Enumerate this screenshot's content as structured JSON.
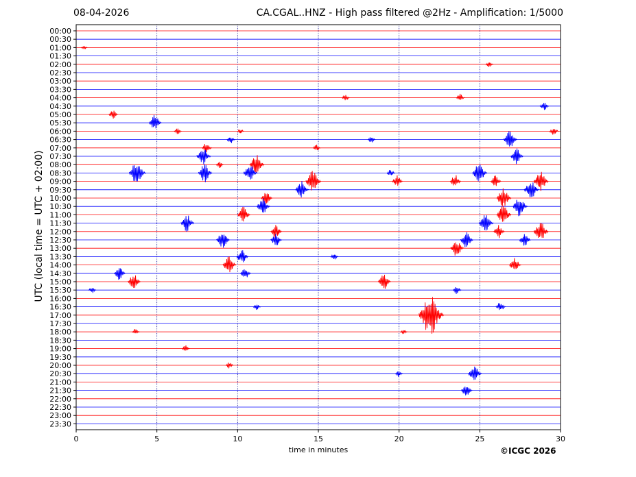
{
  "header": {
    "date": "08-04-2026",
    "title": "CA.CGAL..HNZ - High pass filtered @2Hz - Amplification: 1/5000"
  },
  "footer": {
    "copyright": "©ICGC 2026"
  },
  "colors": {
    "red_trace": "#ff0000",
    "blue_trace": "#0000ff",
    "grid": "#00008b",
    "axis": "#000000"
  },
  "chart_data": {
    "type": "line",
    "title": "CA.CGAL..HNZ - High pass filtered @2Hz - Amplification: 1/5000",
    "xlabel": "time in minutes",
    "ylabel": "UTC (local time = UTC + 02:00)",
    "xlim": [
      0,
      30
    ],
    "x_ticks": [
      "0",
      "5",
      "10",
      "15",
      "20",
      "25",
      "30"
    ],
    "x_tick_values": [
      0,
      5,
      10,
      15,
      20,
      25,
      30
    ],
    "rows": [
      "00:00",
      "00:30",
      "01:00",
      "01:30",
      "02:00",
      "02:30",
      "03:00",
      "03:30",
      "04:00",
      "04:30",
      "05:00",
      "05:30",
      "06:00",
      "06:30",
      "07:00",
      "07:30",
      "08:00",
      "08:30",
      "09:00",
      "09:30",
      "10:00",
      "10:30",
      "11:00",
      "11:30",
      "12:00",
      "12:30",
      "13:00",
      "13:30",
      "14:00",
      "14:30",
      "15:00",
      "15:30",
      "16:00",
      "16:30",
      "17:00",
      "17:30",
      "18:00",
      "18:30",
      "19:00",
      "19:30",
      "20:00",
      "20:30",
      "21:00",
      "21:30",
      "22:00",
      "22:30",
      "23:00",
      "23:30"
    ],
    "row_colors": "alternating red (:00) and blue (:30)",
    "vertical_grid": true,
    "events": [
      {
        "row": "01:00",
        "minute": 0.5,
        "amplitude": 0.3
      },
      {
        "row": "02:00",
        "minute": 25.6,
        "amplitude": 0.5
      },
      {
        "row": "04:00",
        "minute": 16.7,
        "amplitude": 0.5
      },
      {
        "row": "04:00",
        "minute": 23.8,
        "amplitude": 0.6
      },
      {
        "row": "04:30",
        "minute": 29.0,
        "amplitude": 0.7
      },
      {
        "row": "05:00",
        "minute": 2.3,
        "amplitude": 0.7
      },
      {
        "row": "05:30",
        "minute": 4.9,
        "amplitude": 1.2
      },
      {
        "row": "06:00",
        "minute": 6.3,
        "amplitude": 0.5
      },
      {
        "row": "06:00",
        "minute": 10.2,
        "amplitude": 0.4
      },
      {
        "row": "06:00",
        "minute": 29.6,
        "amplitude": 0.7
      },
      {
        "row": "06:30",
        "minute": 9.6,
        "amplitude": 0.6
      },
      {
        "row": "06:30",
        "minute": 18.3,
        "amplitude": 0.5
      },
      {
        "row": "06:30",
        "minute": 26.9,
        "amplitude": 1.3
      },
      {
        "row": "07:00",
        "minute": 8.1,
        "amplitude": 0.8
      },
      {
        "row": "07:00",
        "minute": 14.9,
        "amplitude": 0.5
      },
      {
        "row": "07:30",
        "minute": 7.9,
        "amplitude": 1.4
      },
      {
        "row": "07:30",
        "minute": 27.3,
        "amplitude": 1.2
      },
      {
        "row": "08:00",
        "minute": 11.2,
        "amplitude": 1.5
      },
      {
        "row": "08:00",
        "minute": 8.9,
        "amplitude": 0.5
      },
      {
        "row": "08:30",
        "minute": 3.8,
        "amplitude": 1.8
      },
      {
        "row": "08:30",
        "minute": 8.0,
        "amplitude": 1.4
      },
      {
        "row": "08:30",
        "minute": 10.8,
        "amplitude": 1.4
      },
      {
        "row": "08:30",
        "minute": 25.0,
        "amplitude": 1.5
      },
      {
        "row": "08:30",
        "minute": 19.5,
        "amplitude": 0.6
      },
      {
        "row": "09:00",
        "minute": 14.7,
        "amplitude": 1.6
      },
      {
        "row": "09:00",
        "minute": 19.9,
        "amplitude": 0.9
      },
      {
        "row": "09:00",
        "minute": 23.5,
        "amplitude": 1.0
      },
      {
        "row": "09:00",
        "minute": 26.0,
        "amplitude": 0.9
      },
      {
        "row": "09:00",
        "minute": 28.8,
        "amplitude": 1.5
      },
      {
        "row": "09:30",
        "minute": 14.0,
        "amplitude": 1.3
      },
      {
        "row": "09:30",
        "minute": 28.2,
        "amplitude": 1.5
      },
      {
        "row": "10:00",
        "minute": 11.8,
        "amplitude": 1.0
      },
      {
        "row": "10:00",
        "minute": 26.5,
        "amplitude": 1.5
      },
      {
        "row": "10:30",
        "minute": 11.6,
        "amplitude": 1.3
      },
      {
        "row": "10:30",
        "minute": 27.5,
        "amplitude": 1.5
      },
      {
        "row": "11:00",
        "minute": 10.4,
        "amplitude": 1.2
      },
      {
        "row": "11:00",
        "minute": 26.5,
        "amplitude": 1.5
      },
      {
        "row": "11:30",
        "minute": 6.9,
        "amplitude": 1.3
      },
      {
        "row": "11:30",
        "minute": 25.4,
        "amplitude": 1.5
      },
      {
        "row": "12:00",
        "minute": 12.4,
        "amplitude": 1.0
      },
      {
        "row": "12:00",
        "minute": 26.2,
        "amplitude": 1.0
      },
      {
        "row": "12:00",
        "minute": 28.8,
        "amplitude": 1.5
      },
      {
        "row": "12:30",
        "minute": 9.1,
        "amplitude": 1.3
      },
      {
        "row": "12:30",
        "minute": 12.4,
        "amplitude": 1.0
      },
      {
        "row": "12:30",
        "minute": 24.2,
        "amplitude": 1.2
      },
      {
        "row": "12:30",
        "minute": 27.8,
        "amplitude": 1.0
      },
      {
        "row": "13:00",
        "minute": 23.6,
        "amplitude": 1.3
      },
      {
        "row": "13:30",
        "minute": 10.3,
        "amplitude": 1.1
      },
      {
        "row": "13:30",
        "minute": 16.0,
        "amplitude": 0.5
      },
      {
        "row": "14:00",
        "minute": 9.5,
        "amplitude": 1.3
      },
      {
        "row": "14:00",
        "minute": 27.2,
        "amplitude": 1.1
      },
      {
        "row": "14:30",
        "minute": 2.7,
        "amplitude": 1.0
      },
      {
        "row": "14:30",
        "minute": 10.5,
        "amplitude": 0.9
      },
      {
        "row": "15:00",
        "minute": 3.6,
        "amplitude": 1.2
      },
      {
        "row": "15:00",
        "minute": 19.1,
        "amplitude": 1.2
      },
      {
        "row": "15:30",
        "minute": 1.0,
        "amplitude": 0.5
      },
      {
        "row": "15:30",
        "minute": 23.6,
        "amplitude": 0.6
      },
      {
        "row": "16:30",
        "minute": 11.2,
        "amplitude": 0.5
      },
      {
        "row": "16:30",
        "minute": 26.3,
        "amplitude": 0.8
      },
      {
        "row": "17:00",
        "minute": 22.0,
        "amplitude": 3.0
      },
      {
        "row": "18:00",
        "minute": 3.7,
        "amplitude": 0.5
      },
      {
        "row": "18:00",
        "minute": 20.3,
        "amplitude": 0.4
      },
      {
        "row": "19:00",
        "minute": 6.8,
        "amplitude": 0.5
      },
      {
        "row": "20:00",
        "minute": 9.5,
        "amplitude": 0.5
      },
      {
        "row": "20:30",
        "minute": 20.0,
        "amplitude": 0.5
      },
      {
        "row": "20:30",
        "minute": 24.7,
        "amplitude": 1.3
      },
      {
        "row": "21:30",
        "minute": 24.2,
        "amplitude": 1.0
      }
    ]
  }
}
